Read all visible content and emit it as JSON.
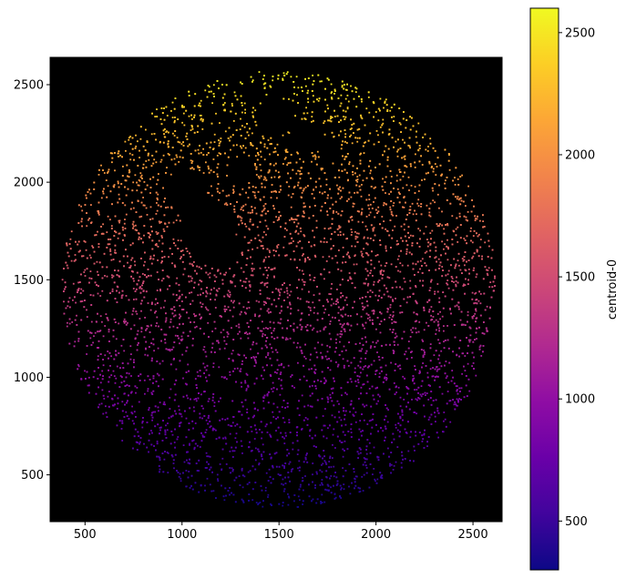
{
  "chart_data": {
    "type": "scatter",
    "title": "",
    "xlabel": "",
    "ylabel": "",
    "xlim": [
      320,
      2650
    ],
    "ylim": [
      260,
      2640
    ],
    "x_ticks": [
      500,
      1000,
      1500,
      2000,
      2500
    ],
    "y_ticks": [
      500,
      1000,
      1500,
      2000,
      2500
    ],
    "background_color": "#000000",
    "colormap": "plasma",
    "color_variable": "centroid-0",
    "point_cloud": {
      "shape": "disk",
      "center": [
        1500,
        1450
      ],
      "radius": 1120,
      "color_by": "y",
      "holes": [
        {
          "center": [
            1020,
            1960
          ],
          "radius": 110
        },
        {
          "center": [
            1130,
            1780
          ],
          "radius": 140
        },
        {
          "center": [
            1210,
            1640
          ],
          "radius": 90
        },
        {
          "center": [
            1300,
            2050
          ],
          "radius": 70
        },
        {
          "center": [
            1480,
            2330
          ],
          "radius": 95
        },
        {
          "center": [
            1640,
            2230
          ],
          "radius": 80
        },
        {
          "center": [
            1760,
            2170
          ],
          "radius": 60
        },
        {
          "center": [
            1360,
            2440
          ],
          "radius": 50
        },
        {
          "center": [
            1530,
            1540
          ],
          "radius": 55
        },
        {
          "center": [
            1230,
            940
          ],
          "radius": 50
        },
        {
          "center": [
            1380,
            920
          ],
          "radius": 45
        }
      ]
    },
    "colorbar": {
      "label": "centroid-0",
      "range": [
        300,
        2600
      ],
      "ticks": [
        500,
        1000,
        1500,
        2000,
        2500
      ]
    }
  }
}
